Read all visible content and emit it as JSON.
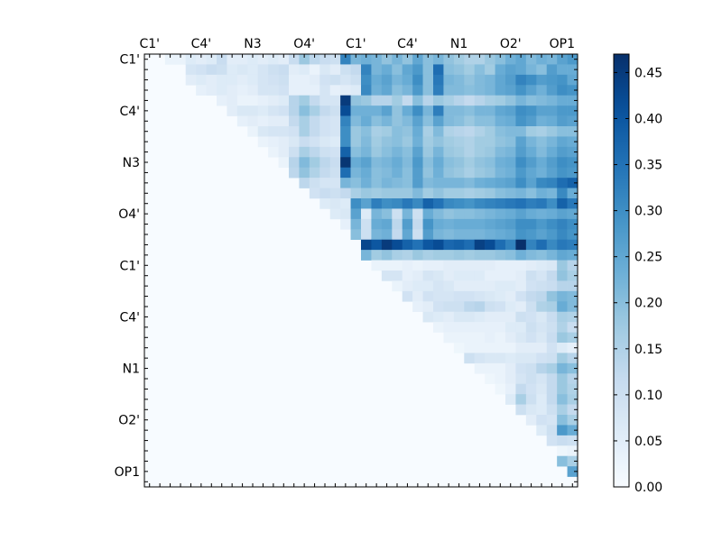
{
  "chart_data": {
    "type": "heatmap",
    "grid_size": 42,
    "x_tick_labels": [
      "C1'",
      "C4'",
      "N3",
      "O4'",
      "C1'",
      "C4'",
      "N1",
      "O2'",
      "OP1"
    ],
    "y_tick_labels": [
      "C1'",
      "C4'",
      "N3",
      "O4'",
      "C1'",
      "C4'",
      "N1",
      "O2'",
      "OP1"
    ],
    "tick_label_indices": [
      0,
      5,
      10,
      15,
      20,
      25,
      30,
      35,
      40
    ],
    "colorbar": {
      "ticks": [
        "0.00",
        "0.05",
        "0.10",
        "0.15",
        "0.20",
        "0.25",
        "0.30",
        "0.35",
        "0.40",
        "0.45"
      ],
      "tick_values": [
        0,
        0.05,
        0.1,
        0.15,
        0.2,
        0.25,
        0.3,
        0.35,
        0.4,
        0.45
      ],
      "min": 0,
      "max": 0.47,
      "colormap": "Blues"
    },
    "matrix_rows": [
      "0 0 .03 .03 .06 .05 .06 .11 .05 .05 .06 .05 .06 .05 .11 .18 .13 .11 .10 .32 .22 .23 .22 .19 .22 .19 .25 .20 .22 .19 .17 .15 .15 .18 .20 .23 .25 .21 .23 .22 .26 .28",
      "0 0 0 0 .08 .09 .11 .10 .06 .07 .06 .08 .10 .11 .05 .06 .03 .07 .05 .10 .12 .32 .22 .24 .20 .25 .28 .20 .36 .20 .19 .17 .20 .17 .24 .26 .25 .22 .20 .27 .24 .24",
      "0 0 0 0 .05 .06 .05 .06 .06 .05 .06 .08 .09 .10 .04 .04 .05 .09 .10 .08 .10 .30 .24 .26 .22 .24 .30 .20 .34 .22 .21 .19 .21 .22 .25 .27 .32 .30 .27 .28 .29 .25",
      "0 0 0 0 0 .04 .05 .06 .05 .04 .05 .08 .08 .09 .04 .04 .04 .08 .04 .05 .06 .31 .23 .25 .20 .22 .28 .20 .33 .21 .21 .20 .21 .22 .25 .26 .29 .26 .23 .27 .30 .29",
      "0 0 0 0 0 0 0 .04 .05 .03 .03 .04 .05 .06 .14 .17 .12 .08 .08 .45 .19 .18 .14 .14 .17 .12 .20 .14 .18 .16 .14 .12 .14 .16 .17 .19 .22 .20 .21 .22 .24 .24",
      "0 0 0 0 0 0 0 0 .05 .07 .07 .06 .08 .09 .14 .20 .16 .12 .10 .42 .23 .23 .23 .26 .19 .24 .30 .22 .33 .21 .21 .20 .22 .22 .25 .26 .30 .29 .26 .26 .28 .28",
      "0 0 0 0 0 0 0 0 0 .04 .05 .04 .05 .05 .12 .16 .12 .09 .08 .32 .21 .24 .20 .22 .19 .21 .26 .20 .26 .21 .20 .18 .20 .20 .23 .24 .29 .27 .23 .24 .27 .26",
      "0 0 0 0 0 0 0 0 0 0 .03 .07 .08 .08 .09 .16 .12 .09 .08 .30 .18 .20 .16 .17 .20 .19 .24 .16 .21 .15 .14 .13 .15 .17 .20 .21 .21 .17 .16 .18 .20 .20",
      "0 0 0 0 0 0 0 0 0 0 0 .03 .04 .05 .07 .11 .09 .07 .06 .30 .18 .21 .17 .19 .20 .18 .23 .17 .19 .17 .16 .15 .17 .17 .19 .20 .26 .22 .20 .22 .25 .24",
      "0 0 0 0 0 0 0 0 0 0 0 0 .03 .05 .10 .16 .13 .10 .09 .38 .20 .22 .18 .20 .22 .20 .26 .18 .22 .18 .17 .15 .17 .18 .21 .22 .27 .24 .21 .24 .27 .26",
      "0 0 0 0 0 0 0 0 0 0 0 0 0 .03 .14 .21 .17 .13 .11 .46 .24 .26 .21 .22 .24 .21 .28 .20 .24 .20 .19 .17 .19 .20 .23 .24 .30 .27 .24 .27 .30 .29",
      "0 0 0 0 0 0 0 0 0 0 0 0 0 0 .13 .19 .15 .12 .10 .36 .22 .24 .20 .21 .23 .20 .27 .19 .23 .19 .18 .16 .18 .19 .22 .23 .28 .25 .23 .26 .29 .28",
      "0 0 0 0 0 0 0 0 0 0 0 0 0 0 0 .13 .10 .08 .08 .22 .20 .23 .20 .22 .21 .20 .27 .21 .22 .22 .22 .21 .23 .24 .25 .26 .30 .26 .31 .32 .36 .38",
      "0 0 0 0 0 0 0 0 0 0 0 0 0 0 0 0 .09 .11 .10 .12 .16 .18 .17 .18 .18 .18 .21 .17 .19 .17 .17 .16 .17 .18 .20 .21 .22 .20 .23 .22 .31 .24",
      "0 0 0 0 0 0 0 0 0 0 0 0 0 0 0 0 0 .06 .07 .06 .30 .26 .33 .30 .31 .34 .31 .38 .35 .31 .30 .29 .31 .32 .33 .34 .35 .33 .34 .30 .38 .34",
      "0 0 0 0 0 0 0 0 0 0 0 0 0 0 0 0 0 0 .06 .07 .26 .06 .22 .20 .10 .22 .10 .24 .21 .19 .20 .20 .21 .22 .23 .24 .26 .24 .23 .24 .26 .25",
      "0 0 0 0 0 0 0 0 0 0 0 0 0 0 0 0 0 0 0 .04 .22 .10 .24 .25 .13 .27 .12 .29 .24 .23 .24 .24 .24 .25 .26 .27 .30 .30 .28 .30 .32 .30",
      "0 0 0 0 0 0 0 0 0 0 0 0 0 0 0 0 0 0 0 0 .20 .10 .22 .23 .12 .25 .10 .27 .22 .21 .22 .22 .22 .23 .24 .25 .29 .28 .26 .28 .31 .29",
      "0 0 0 0 0 0 0 0 0 0 0 0 0 0 0 0 0 0 0 0 0 .43 .40 .45 .42 .38 .35 .40 .42 .37 .38 .36 .44 .42 .36 .32 .47 .32 .36 .31 .34 .33",
      "0 0 0 0 0 0 0 0 0 0 0 0 0 0 0 0 0 0 0 0 0 .22 .17 .19 .16 .15 .18 .16 .17 .17 .18 .17 .18 .18 .19 .20 .23 .21 .20 .22 .25 .24",
      "0 0 0 0 0 0 0 0 0 0 0 0 0 0 0 0 0 0 0 0 0 0 .03 .03 .03 .04 .03 .04 .04 .05 .05 .05 .05 .05 .04 .04 .04 .05 .06 .07 .18 .14",
      "0 0 0 0 0 0 0 0 0 0 0 0 0 0 0 0 0 0 0 0 0 0 0 .08 .08 .04 .05 .08 .07 .05 .06 .06 .06 .04 .04 .04 .05 .10 .08 .12 .19 .16",
      "0 0 0 0 0 0 0 0 0 0 0 0 0 0 0 0 0 0 0 0 0 0 0 0 .03 .05 .06 .06 .08 .07 .05 .05 .05 .05 .06 .06 .05 .09 .10 .11 .14 .14",
      "0 0 0 0 0 0 0 0 0 0 0 0 0 0 0 0 0 0 0 0 0 0 0 0 0 .09 .05 .09 .08 .08 .09 .09 .08 .07 .06 .05 .09 .12 .13 .19 .22 .21",
      "0 0 0 0 0 0 0 0 0 0 0 0 0 0 0 0 0 0 0 0 0 0 0 0 0 0 .04 .05 .09 .10 .10 .13 .14 .10 .09 .06 .05 .10 .15 .16 .24 .21",
      "0 0 0 0 0 0 0 0 0 0 0 0 0 0 0 0 0 0 0 0 0 0 0 0 0 0 0 .07 .06 .05 .07 .07 .06 .05 .05 .05 .10 .09 .07 .11 .16 .15",
      "0 0 0 0 0 0 0 0 0 0 0 0 0 0 0 0 0 0 0 0 0 0 0 0 0 0 0 0 .03 .04 .04 .04 .04 .04 .04 .06 .06 .10 .08 .10 .15 .11",
      "0 0 0 0 0 0 0 0 0 0 0 0 0 0 0 0 0 0 0 0 0 0 0 0 0 0 0 0 0 .03 .03 .03 .03 .04 .03 .05 .07 .09 .07 .11 .18 .16",
      "0 0 0 0 0 0 0 0 0 0 0 0 0 0 0 0 0 0 0 0 0 0 0 0 0 0 0 0 0 0 .02 .03 .03 .03 .03 .03 .05 .05 .05 .09 .06 .04",
      "0 0 0 0 0 0 0 0 0 0 0 0 0 0 0 0 0 0 0 0 0 0 0 0 0 0 0 0 0 0 0 .10 .08 .07 .07 .06 .07 .07 .09 .10 .17 .14",
      "0 0 0 0 0 0 0 0 0 0 0 0 0 0 0 0 0 0 0 0 0 0 0 0 0 0 0 0 0 0 0 0 .03 .03 .03 .05 .09 .10 .14 .16 .22 .20",
      "0 0 0 0 0 0 0 0 0 0 0 0 0 0 0 0 0 0 0 0 0 0 0 0 0 0 0 0 0 0 0 0 0 .02 .03 .05 .08 .10 .08 .12 .18 .14",
      "0 0 0 0 0 0 0 0 0 0 0 0 0 0 0 0 0 0 0 0 0 0 0 0 0 0 0 0 0 0 0 0 0 0 .02 .04 .12 .09 .07 .12 .18 .15",
      "0 0 0 0 0 0 0 0 0 0 0 0 0 0 0 0 0 0 0 0 0 0 0 0 0 0 0 0 0 0 0 0 0 0 0 .06 .16 .10 .06 .12 .20 .16",
      "0 0 0 0 0 0 0 0 0 0 0 0 0 0 0 0 0 0 0 0 0 0 0 0 0 0 0 0 0 0 0 0 0 0 0 0 .10 .07 .06 .10 .16 .12",
      "0 0 0 0 0 0 0 0 0 0 0 0 0 0 0 0 0 0 0 0 0 0 0 0 0 0 0 0 0 0 0 0 0 0 0 0 0 .05 .09 .08 .20 .16",
      "0 0 0 0 0 0 0 0 0 0 0 0 0 0 0 0 0 0 0 0 0 0 0 0 0 0 0 0 0 0 0 0 0 0 0 0 0 0 .06 .10 .28 .24",
      "0 0 0 0 0 0 0 0 0 0 0 0 0 0 0 0 0 0 0 0 0 0 0 0 0 0 0 0 0 0 0 0 0 0 0 0 0 0 0 .09 .11 .10",
      "0 0 0 0 0 0 0 0 0 0 0 0 0 0 0 0 0 0 0 0 0 0 0 0 0 0 0 0 0 0 0 0 0 0 0 0 0 0 0 0 .02 .03",
      "0 0 0 0 0 0 0 0 0 0 0 0 0 0 0 0 0 0 0 0 0 0 0 0 0 0 0 0 0 0 0 0 0 0 0 0 0 0 0 0 .20 .16",
      "0 0 0 0 0 0 0 0 0 0 0 0 0 0 0 0 0 0 0 0 0 0 0 0 0 0 0 0 0 0 0 0 0 0 0 0 0 0 0 0 0 .26",
      "0 0 0 0 0 0 0 0 0 0 0 0 0 0 0 0 0 0 0 0 0 0 0 0 0 0 0 0 0 0 0 0 0 0 0 0 0 0 0 0 0 0"
    ]
  }
}
